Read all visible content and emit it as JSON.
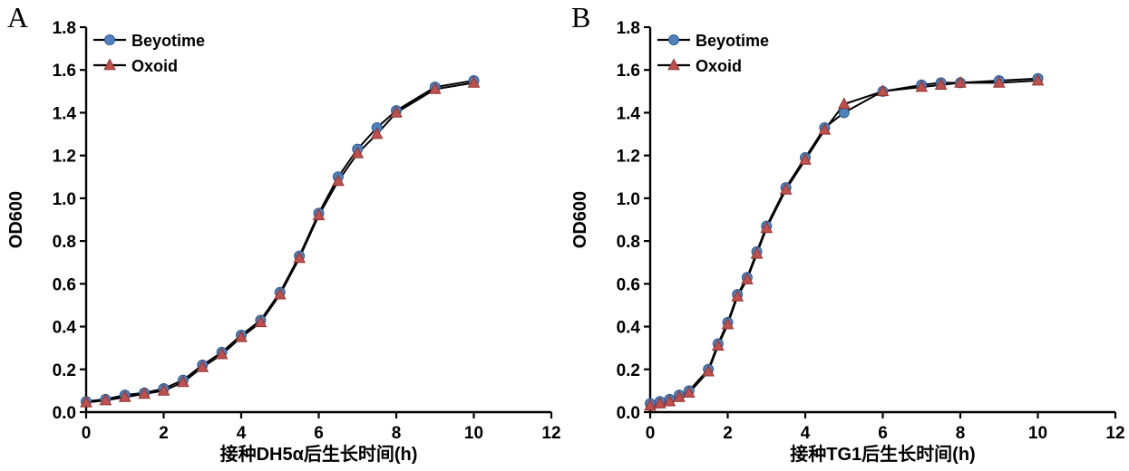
{
  "page": {
    "background": "#ffffff",
    "line_color": "#000000",
    "axis_color": "#000000"
  },
  "chart_data": [
    {
      "type": "line",
      "panel_label": "A",
      "title": "",
      "xlabel": "接种DH5α后生长时间(h)",
      "ylabel": "OD600",
      "xlim": [
        0,
        12
      ],
      "ylim": [
        0,
        1.8
      ],
      "xticks": [
        0,
        2,
        4,
        6,
        8,
        10,
        12
      ],
      "yticks": [
        0.0,
        0.2,
        0.4,
        0.6,
        0.8,
        1.0,
        1.2,
        1.4,
        1.6,
        1.8
      ],
      "grid": false,
      "legend_position": "top-left",
      "x": [
        0,
        0.5,
        1,
        1.5,
        2,
        2.5,
        3,
        3.5,
        4,
        4.5,
        5,
        5.5,
        6,
        6.5,
        7,
        7.5,
        8,
        9,
        10
      ],
      "series": [
        {
          "name": "Beyotime",
          "marker": "circle",
          "marker_color": "#4f81bd",
          "marker_edge": "#2e5c8f",
          "line_color": "#000000",
          "values": [
            0.05,
            0.06,
            0.08,
            0.09,
            0.11,
            0.15,
            0.22,
            0.28,
            0.36,
            0.43,
            0.56,
            0.73,
            0.93,
            1.1,
            1.23,
            1.33,
            1.41,
            1.52,
            1.55
          ]
        },
        {
          "name": "Oxoid",
          "marker": "triangle",
          "marker_color": "#c0504d",
          "marker_edge": "#8f3330",
          "line_color": "#000000",
          "values": [
            0.045,
            0.055,
            0.07,
            0.085,
            0.1,
            0.14,
            0.21,
            0.27,
            0.35,
            0.42,
            0.55,
            0.72,
            0.92,
            1.08,
            1.21,
            1.3,
            1.4,
            1.51,
            1.54
          ]
        }
      ]
    },
    {
      "type": "line",
      "panel_label": "B",
      "title": "",
      "xlabel": "接种TG1后生长时间(h)",
      "ylabel": "OD600",
      "xlim": [
        0,
        12
      ],
      "ylim": [
        0,
        1.8
      ],
      "xticks": [
        0,
        2,
        4,
        6,
        8,
        10,
        12
      ],
      "yticks": [
        0.0,
        0.2,
        0.4,
        0.6,
        0.8,
        1.0,
        1.2,
        1.4,
        1.6,
        1.8
      ],
      "grid": false,
      "legend_position": "top-left",
      "x": [
        0,
        0.25,
        0.5,
        0.75,
        1,
        1.5,
        1.75,
        2,
        2.25,
        2.5,
        2.75,
        3,
        3.5,
        4,
        4.5,
        5,
        6,
        7,
        7.5,
        8,
        9,
        10
      ],
      "series": [
        {
          "name": "Beyotime",
          "marker": "circle",
          "marker_color": "#4f81bd",
          "marker_edge": "#2e5c8f",
          "line_color": "#000000",
          "values": [
            0.04,
            0.05,
            0.06,
            0.08,
            0.1,
            0.2,
            0.32,
            0.42,
            0.55,
            0.63,
            0.75,
            0.87,
            1.05,
            1.19,
            1.33,
            1.4,
            1.5,
            1.53,
            1.54,
            1.54,
            1.55,
            1.56
          ]
        },
        {
          "name": "Oxoid",
          "marker": "triangle",
          "marker_color": "#c0504d",
          "marker_edge": "#8f3330",
          "line_color": "#000000",
          "values": [
            0.03,
            0.04,
            0.05,
            0.07,
            0.09,
            0.19,
            0.31,
            0.41,
            0.54,
            0.62,
            0.74,
            0.86,
            1.04,
            1.18,
            1.32,
            1.44,
            1.5,
            1.52,
            1.53,
            1.54,
            1.54,
            1.55
          ]
        }
      ]
    }
  ]
}
